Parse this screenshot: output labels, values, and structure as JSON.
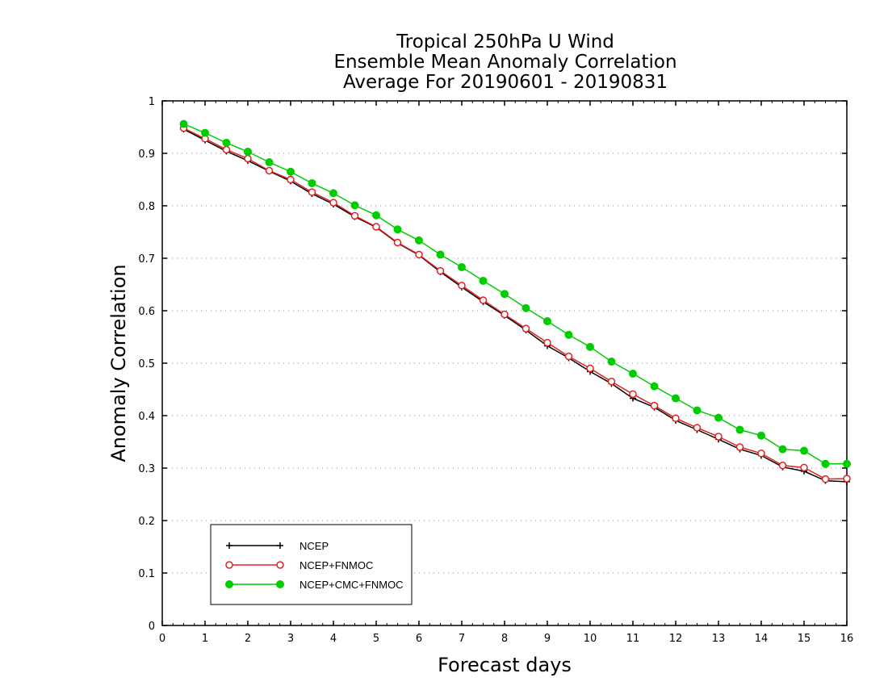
{
  "chart_data": {
    "type": "line",
    "title_lines": [
      "Tropical 250hPa U Wind",
      "Ensemble Mean Anomaly Correlation",
      "Average For 20190601 - 20190831"
    ],
    "xlabel": "Forecast days",
    "ylabel": "Anomaly Correlation",
    "xlim": [
      0,
      16
    ],
    "ylim": [
      0,
      1
    ],
    "x_ticks": [
      "0",
      "1",
      "2",
      "3",
      "4",
      "5",
      "6",
      "7",
      "8",
      "9",
      "10",
      "11",
      "12",
      "13",
      "14",
      "15",
      "16"
    ],
    "y_ticks": [
      "0",
      "0.1",
      "0.2",
      "0.3",
      "0.4",
      "0.5",
      "0.6",
      "0.7",
      "0.8",
      "0.9",
      "1"
    ],
    "grid": "horizontal dotted",
    "legend_position": "bottom-left",
    "x": [
      0.5,
      1,
      1.5,
      2,
      2.5,
      3,
      3.5,
      4,
      4.5,
      5,
      5.5,
      6,
      6.5,
      7,
      7.5,
      8,
      8.5,
      9,
      9.5,
      10,
      10.5,
      11,
      11.5,
      12,
      12.5,
      13,
      13.5,
      14,
      14.5,
      15,
      15.5,
      16
    ],
    "series": [
      {
        "name": "NCEP",
        "color": "#000000",
        "marker": "plus",
        "values": [
          0.946,
          0.925,
          0.904,
          0.886,
          0.866,
          0.847,
          0.823,
          0.803,
          0.779,
          0.759,
          0.729,
          0.706,
          0.674,
          0.645,
          0.617,
          0.591,
          0.563,
          0.533,
          0.51,
          0.484,
          0.461,
          0.433,
          0.416,
          0.391,
          0.373,
          0.355,
          0.336,
          0.324,
          0.302,
          0.294,
          0.276,
          0.274
        ]
      },
      {
        "name": "NCEP+FNMOC",
        "color": "#e02020",
        "marker": "open-circle",
        "values": [
          0.948,
          0.928,
          0.907,
          0.89,
          0.867,
          0.85,
          0.826,
          0.806,
          0.781,
          0.76,
          0.73,
          0.707,
          0.676,
          0.648,
          0.62,
          0.593,
          0.566,
          0.539,
          0.513,
          0.49,
          0.465,
          0.441,
          0.419,
          0.395,
          0.377,
          0.36,
          0.34,
          0.328,
          0.305,
          0.301,
          0.279,
          0.28
        ]
      },
      {
        "name": "NCEP+CMC+FNMOC",
        "color": "#00cc00",
        "marker": "filled-circle",
        "values": [
          0.956,
          0.939,
          0.92,
          0.903,
          0.883,
          0.865,
          0.843,
          0.824,
          0.801,
          0.782,
          0.755,
          0.734,
          0.707,
          0.683,
          0.657,
          0.632,
          0.605,
          0.58,
          0.554,
          0.531,
          0.503,
          0.48,
          0.456,
          0.433,
          0.41,
          0.396,
          0.373,
          0.362,
          0.336,
          0.333,
          0.308,
          0.308
        ]
      }
    ]
  }
}
